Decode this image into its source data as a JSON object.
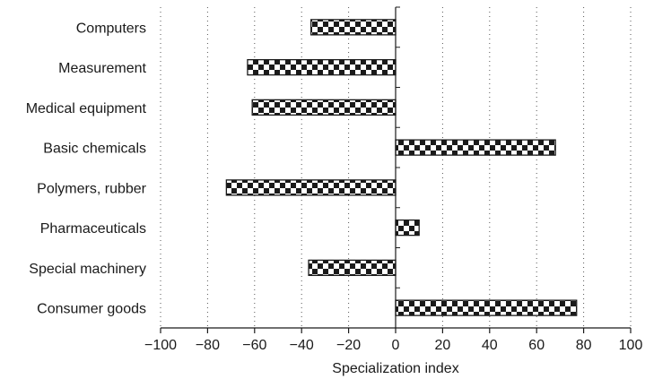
{
  "chart_data": {
    "type": "bar",
    "orientation": "horizontal",
    "categories": [
      "Computers",
      "Measurement",
      "Medical equipment",
      "Basic chemicals",
      "Polymers, rubber",
      "Pharmaceuticals",
      "Special machinery",
      "Consumer goods"
    ],
    "values": [
      -36,
      -63,
      -61,
      68,
      -72,
      10,
      -37,
      77
    ],
    "xlabel": "Specialization index",
    "ylabel": "",
    "xlim": [
      -100,
      100
    ],
    "xticks": [
      -100,
      -80,
      -60,
      -40,
      -20,
      0,
      20,
      40,
      60,
      80,
      100
    ],
    "xtick_labels": [
      "−100",
      "−80",
      "−60",
      "−40",
      "−20",
      "0",
      "20",
      "40",
      "60",
      "80",
      "100"
    ],
    "grid": "vertical dotted",
    "bar_pattern": "black-white checkerboard",
    "colors": {
      "dark": "#1a1a1a",
      "light": "#ffffff",
      "grid": "#555555"
    }
  }
}
